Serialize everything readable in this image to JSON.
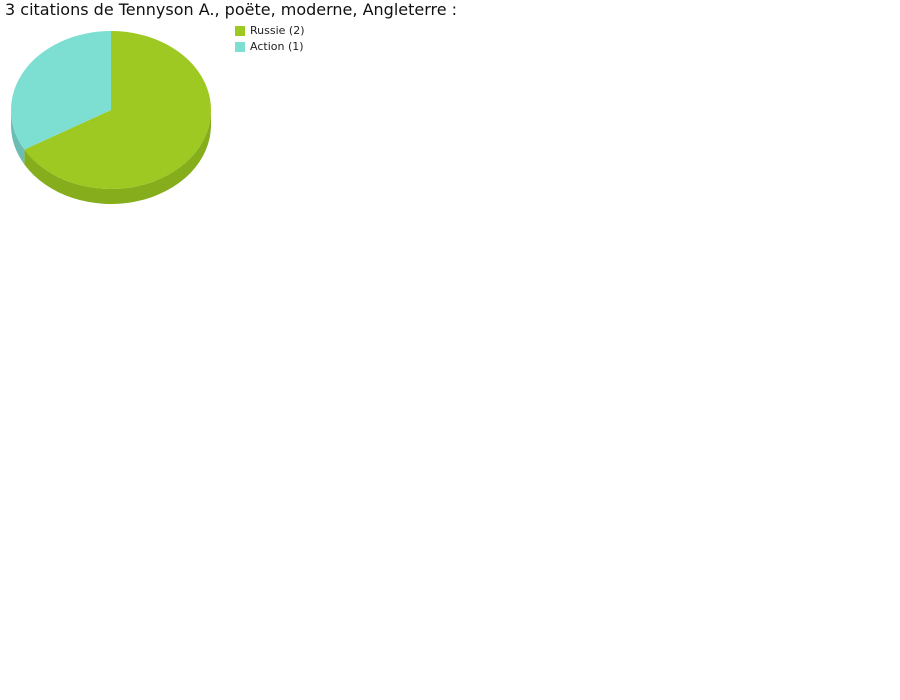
{
  "chart_data": {
    "type": "pie",
    "title": "3 citations de Tennyson A., poëte, moderne, Angleterre :",
    "slices": [
      {
        "label": "Russie (2)",
        "value": 2,
        "color": "#9dc922",
        "side_color": "#86ad1c"
      },
      {
        "label": "Action (1)",
        "value": 1,
        "color": "#7dded2",
        "side_color": "#6bbdb3"
      }
    ],
    "start_angle": "top",
    "direction": "clockwise",
    "style": "3d",
    "legend_position": "top-right"
  }
}
